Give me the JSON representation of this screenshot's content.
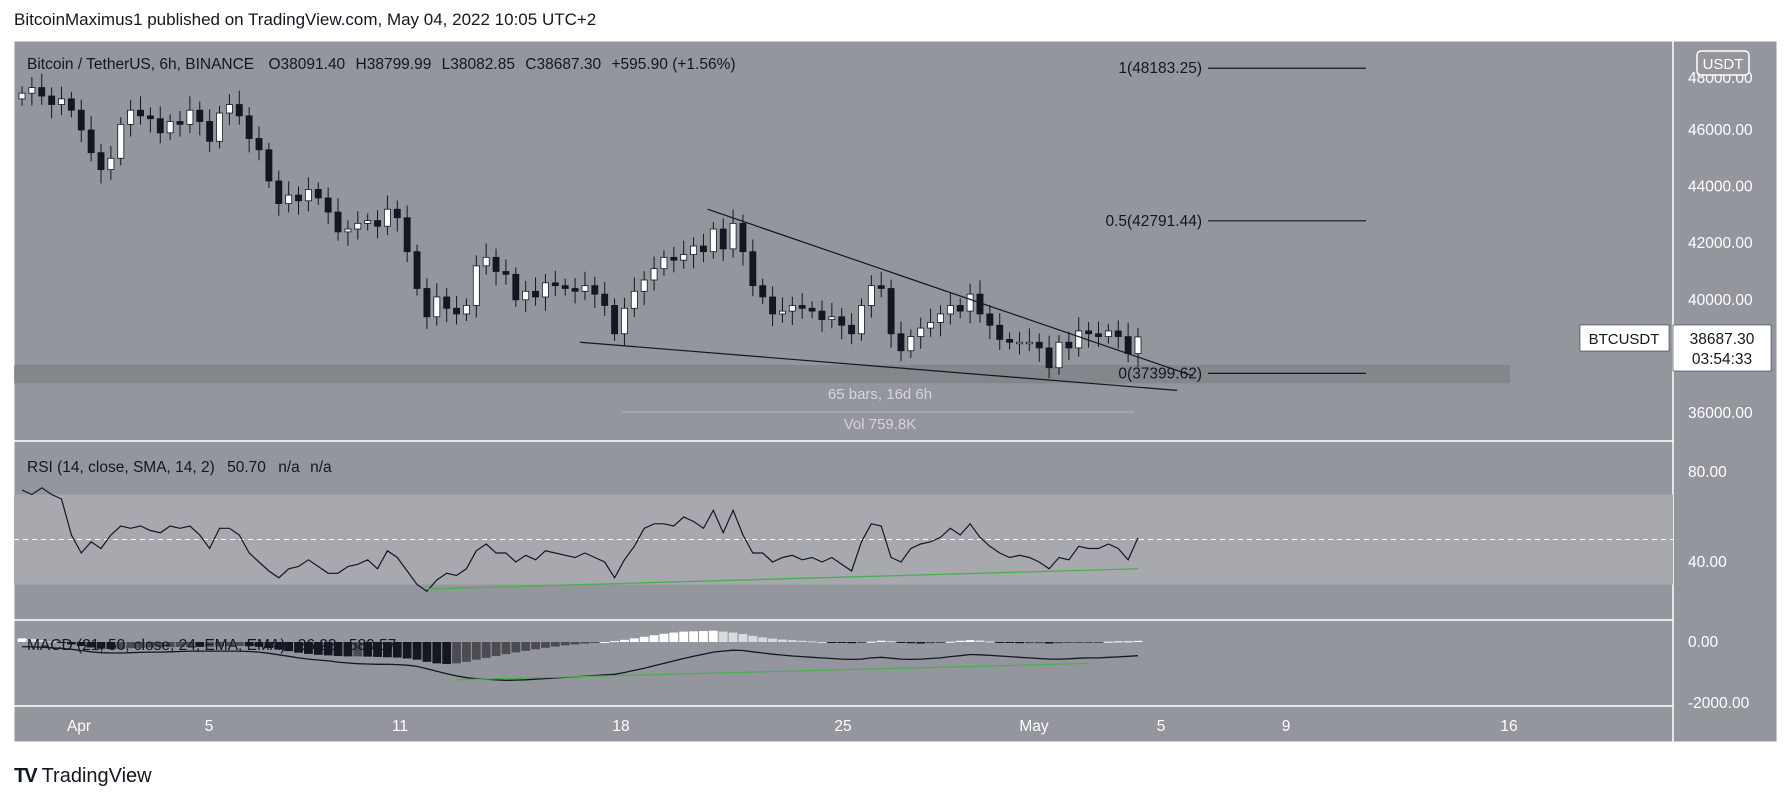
{
  "header": {
    "text": "BitcoinMaximus1 published on TradingView.com, May 04, 2022 10:05 UTC+2"
  },
  "footer": {
    "logo": "TV",
    "brand": "TradingView"
  },
  "colors": {
    "pane_bg": "#94969d",
    "axis_bg": "#94969d",
    "frame": "#ffffff",
    "candle_up": "#ffffff",
    "candle_down": "#131722",
    "rsi_band": "#a7a9ae",
    "divergence": "#4caf50",
    "support_zone": "#7e8086",
    "line": "#131722"
  },
  "chart_data": {
    "type": "candlestick",
    "symbol_line": {
      "title": "Bitcoin / TetherUS, 6h, BINANCE",
      "o_label": "O",
      "o_value": "38091.40",
      "h_label": "H",
      "h_value": "38799.99",
      "l_label": "L",
      "l_value": "38082.85",
      "c_label": "C",
      "c_value": "38687.30",
      "change": "+595.90 (+1.56%)"
    },
    "currency_badge": "USDT",
    "price_axis": {
      "ticks": [
        "46000.00",
        "44000.00",
        "42000.00",
        "40000.00",
        "36000.00"
      ],
      "tick_values": [
        46000,
        44000,
        42000,
        40000,
        36000
      ],
      "top_partial": "48000.00"
    },
    "x_axis": {
      "labels": [
        "Apr",
        "5",
        "11",
        "18",
        "25",
        "May",
        "5",
        "9",
        "16"
      ]
    },
    "price_tag": {
      "symbol": "BTCUSDT",
      "price": "38687.30",
      "countdown": "03:54:33",
      "value": 38687.3
    },
    "fib_levels": [
      {
        "label": "1(48183.25)",
        "value": 48183.25
      },
      {
        "label": "0.5(42791.44)",
        "value": 42791.44
      },
      {
        "label": "0(37399.62)",
        "value": 37399.62
      }
    ],
    "support_zone": {
      "low": 37400,
      "high": 37700
    },
    "measure": {
      "bars": "65 bars, 16d 6h",
      "volume": "Vol 759.8K"
    },
    "wedge": {
      "upper": [
        [
          "Apr 21",
          43200
        ],
        [
          "May 6",
          37450
        ]
      ],
      "lower": [
        [
          "Apr 17",
          38500
        ],
        [
          "May 6",
          36800
        ]
      ]
    },
    "closes": [
      47300,
      47500,
      47200,
      46900,
      47100,
      46700,
      46000,
      45200,
      44600,
      45000,
      46200,
      46700,
      46500,
      46400,
      45900,
      46300,
      46200,
      46700,
      46300,
      45600,
      46600,
      46900,
      46500,
      45700,
      45300,
      44200,
      43400,
      43700,
      43500,
      43900,
      43600,
      43100,
      42400,
      42500,
      42700,
      42800,
      42600,
      43200,
      42900,
      41700,
      40400,
      39400,
      40100,
      39700,
      39500,
      39800,
      41200,
      41500,
      41000,
      40900,
      40000,
      40300,
      40100,
      40600,
      40500,
      40400,
      40300,
      40500,
      40200,
      39800,
      38800,
      39700,
      40300,
      40700,
      41100,
      41500,
      41400,
      41600,
      41900,
      41700,
      42500,
      41800,
      42700,
      41700,
      40500,
      40100,
      39500,
      39600,
      39800,
      39700,
      39600,
      39300,
      39400,
      39100,
      38800,
      39800,
      40500,
      40400,
      38800,
      38200,
      38700,
      39000,
      39200,
      39500,
      39800,
      39600,
      40200,
      39500,
      39100,
      38600,
      38500,
      38500,
      38500,
      38300,
      37600,
      38500,
      38300,
      38900,
      38800,
      38700,
      38900,
      38700,
      38100,
      38687.3
    ],
    "rsi": {
      "label": "RSI (14, close, SMA, 14, 2)",
      "value": "50.70",
      "na1": "n/a",
      "na2": "n/a",
      "ticks": [
        "80.00",
        "40.00"
      ],
      "tick_values": [
        80,
        40
      ],
      "upper_band": 70,
      "lower_band": 30,
      "midline": 50,
      "values": [
        72,
        70,
        73,
        70,
        68,
        52,
        44,
        49,
        46,
        52,
        56,
        55,
        56,
        54,
        53,
        56,
        55,
        56,
        52,
        46,
        55,
        55,
        52,
        44,
        40,
        36,
        33,
        37,
        38,
        41,
        38,
        35,
        35,
        38,
        39,
        41,
        37,
        45,
        42,
        36,
        30,
        27,
        32,
        35,
        34,
        37,
        45,
        48,
        44,
        44,
        40,
        43,
        41,
        45,
        44,
        43,
        42,
        44,
        42,
        40,
        33,
        41,
        47,
        55,
        57,
        57,
        56,
        60,
        58,
        55,
        63,
        53,
        63,
        52,
        44,
        44,
        40,
        42,
        43,
        41,
        42,
        40,
        42,
        39,
        36,
        49,
        57,
        56,
        42,
        40,
        46,
        48,
        49,
        51,
        55,
        52,
        57,
        51,
        47,
        44,
        42,
        43,
        42,
        40,
        37,
        42,
        41,
        47,
        46,
        46,
        48,
        46,
        41,
        50.7
      ],
      "divergence": [
        [
          41,
          28
        ],
        [
          113,
          37
        ]
      ]
    },
    "macd": {
      "label": "MACD (21, 50, close, 24, EMA, EMA)",
      "value": "36.23",
      "value2": "580.57",
      "ticks": [
        "0.00",
        "-2000.00"
      ],
      "tick_values": [
        0,
        -2000
      ],
      "macd_values": [
        -150,
        -160,
        -170,
        -190,
        -210,
        -240,
        -280,
        -320,
        -350,
        -360,
        -360,
        -350,
        -340,
        -330,
        -330,
        -320,
        -310,
        -300,
        -300,
        -300,
        -300,
        -300,
        -300,
        -310,
        -330,
        -370,
        -420,
        -470,
        -520,
        -560,
        -590,
        -620,
        -660,
        -690,
        -710,
        -720,
        -730,
        -730,
        -740,
        -760,
        -800,
        -880,
        -960,
        -1040,
        -1110,
        -1170,
        -1200,
        -1220,
        -1240,
        -1260,
        -1250,
        -1240,
        -1220,
        -1200,
        -1180,
        -1160,
        -1140,
        -1120,
        -1100,
        -1080,
        -1060,
        -1000,
        -930,
        -860,
        -780,
        -700,
        -620,
        -540,
        -470,
        -400,
        -330,
        -300,
        -270,
        -280,
        -320,
        -360,
        -400,
        -430,
        -460,
        -480,
        -500,
        -520,
        -540,
        -560,
        -570,
        -560,
        -520,
        -500,
        -530,
        -560,
        -570,
        -560,
        -540,
        -520,
        -480,
        -450,
        -410,
        -420,
        -440,
        -460,
        -480,
        -500,
        -520,
        -540,
        -560,
        -560,
        -550,
        -530,
        -520,
        -520,
        -500,
        -490,
        -470,
        -450
      ],
      "histogram": [
        120,
        100,
        60,
        20,
        -30,
        -80,
        -130,
        -180,
        -220,
        -230,
        -220,
        -200,
        -190,
        -180,
        -170,
        -170,
        -160,
        -150,
        -160,
        -160,
        -150,
        -140,
        -130,
        -140,
        -160,
        -200,
        -250,
        -300,
        -350,
        -390,
        -420,
        -440,
        -460,
        -470,
        -470,
        -480,
        -490,
        -500,
        -510,
        -540,
        -580,
        -650,
        -700,
        -720,
        -700,
        -650,
        -580,
        -520,
        -460,
        -400,
        -340,
        -290,
        -240,
        -190,
        -150,
        -110,
        -80,
        -50,
        -20,
        0,
        30,
        70,
        120,
        170,
        220,
        270,
        310,
        340,
        350,
        360,
        370,
        340,
        310,
        260,
        200,
        150,
        110,
        80,
        60,
        40,
        20,
        0,
        -20,
        -30,
        -40,
        -30,
        10,
        40,
        30,
        -10,
        -40,
        -50,
        -40,
        -20,
        10,
        40,
        60,
        50,
        20,
        -10,
        -30,
        -40,
        -40,
        -40,
        -50,
        -40,
        -30,
        -20,
        -10,
        -10,
        10,
        20,
        20,
        36
      ]
    }
  }
}
